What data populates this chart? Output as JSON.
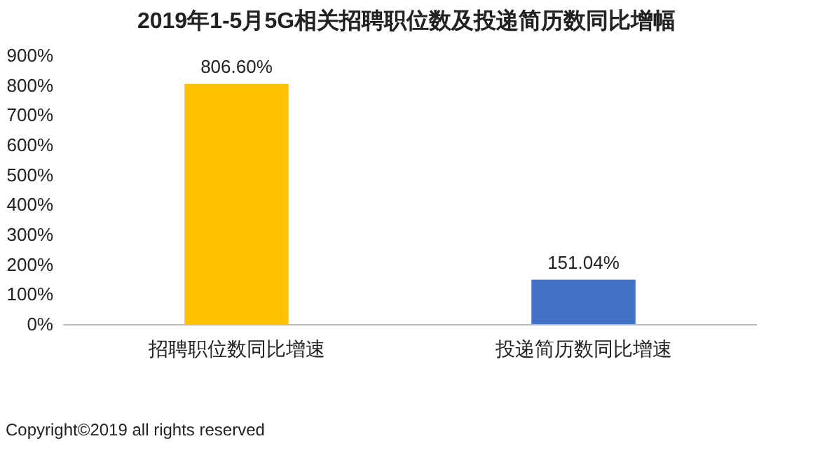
{
  "chart_data": {
    "type": "bar",
    "title": "2019年1-5月5G相关招聘职位数及投递简历数同比增幅",
    "categories": [
      "招聘职位数同比增速",
      "投递简历数同比增速"
    ],
    "values": [
      806.6,
      151.04
    ],
    "colors": [
      "#ffc000",
      "#4472c4"
    ],
    "value_labels": [
      "806.60%",
      "151.04%"
    ],
    "ylim": [
      0,
      900
    ],
    "yticks": [
      {
        "value": 0,
        "label": "0%"
      },
      {
        "value": 100,
        "label": "100%"
      },
      {
        "value": 200,
        "label": "200%"
      },
      {
        "value": 300,
        "label": "300%"
      },
      {
        "value": 400,
        "label": "400%"
      },
      {
        "value": 500,
        "label": "500%"
      },
      {
        "value": 600,
        "label": "600%"
      },
      {
        "value": 700,
        "label": "700%"
      },
      {
        "value": 800,
        "label": "800%"
      },
      {
        "value": 900,
        "label": "900%"
      }
    ],
    "grid": false,
    "annotations": [
      "Copyright©2019 all rights reserved"
    ]
  }
}
